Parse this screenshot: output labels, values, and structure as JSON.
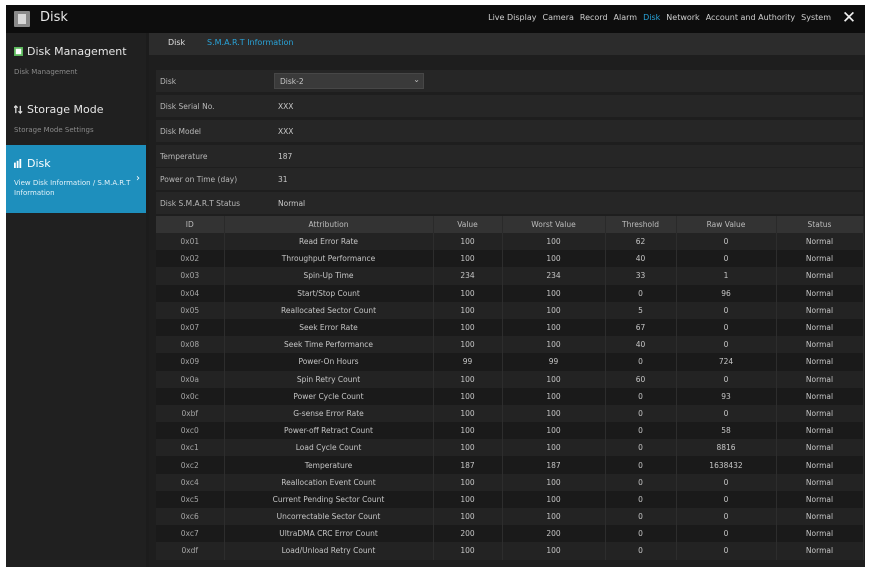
{
  "app": {
    "title": "Disk"
  },
  "nav": {
    "items": [
      {
        "label": "Live Display"
      },
      {
        "label": "Camera"
      },
      {
        "label": "Record"
      },
      {
        "label": "Alarm"
      },
      {
        "label": "Disk",
        "active": true
      },
      {
        "label": "Network"
      },
      {
        "label": "Account and Authority"
      },
      {
        "label": "System"
      }
    ],
    "close_label": "✕"
  },
  "sidebar": {
    "items": [
      {
        "title": "Disk Management",
        "sub": "Disk Management",
        "icon": "disk-management-icon"
      },
      {
        "title": "Storage Mode",
        "sub": "Storage Mode Settings",
        "icon": "storage-mode-icon"
      },
      {
        "title": "Disk",
        "sub": "View Disk Information / S.M.A.R.T Information",
        "icon": "disk-info-icon",
        "active": true
      }
    ]
  },
  "tabs": [
    {
      "label": "Disk"
    },
    {
      "label": "S.M.A.R.T Information",
      "active": true
    }
  ],
  "info": {
    "disk_label": "Disk",
    "disk_value": "Disk-2",
    "serial_label": "Disk Serial No.",
    "serial_value": "XXX",
    "model_label": "Disk Model",
    "model_value": "XXX",
    "temp_label": "Temperature",
    "temp_value": "187",
    "power_label": "Power on Time (day)",
    "power_value": "31",
    "status_label": "Disk S.M.A.R.T Status",
    "status_value": "Normal"
  },
  "table": {
    "headers": [
      "ID",
      "Attribution",
      "Value",
      "Worst Value",
      "Threshold",
      "Raw Value",
      "Status"
    ],
    "rows": [
      [
        "0x01",
        "Read Error Rate",
        "100",
        "100",
        "62",
        "0",
        "Normal"
      ],
      [
        "0x02",
        "Throughput Performance",
        "100",
        "100",
        "40",
        "0",
        "Normal"
      ],
      [
        "0x03",
        "Spin-Up Time",
        "234",
        "234",
        "33",
        "1",
        "Normal"
      ],
      [
        "0x04",
        "Start/Stop Count",
        "100",
        "100",
        "0",
        "96",
        "Normal"
      ],
      [
        "0x05",
        "Reallocated Sector Count",
        "100",
        "100",
        "5",
        "0",
        "Normal"
      ],
      [
        "0x07",
        "Seek Error Rate",
        "100",
        "100",
        "67",
        "0",
        "Normal"
      ],
      [
        "0x08",
        "Seek Time Performance",
        "100",
        "100",
        "40",
        "0",
        "Normal"
      ],
      [
        "0x09",
        "Power-On Hours",
        "99",
        "99",
        "0",
        "724",
        "Normal"
      ],
      [
        "0x0a",
        "Spin Retry Count",
        "100",
        "100",
        "60",
        "0",
        "Normal"
      ],
      [
        "0x0c",
        "Power Cycle Count",
        "100",
        "100",
        "0",
        "93",
        "Normal"
      ],
      [
        "0xbf",
        "G-sense Error Rate",
        "100",
        "100",
        "0",
        "0",
        "Normal"
      ],
      [
        "0xc0",
        "Power-off Retract Count",
        "100",
        "100",
        "0",
        "58",
        "Normal"
      ],
      [
        "0xc1",
        "Load Cycle Count",
        "100",
        "100",
        "0",
        "8816",
        "Normal"
      ],
      [
        "0xc2",
        "Temperature",
        "187",
        "187",
        "0",
        "1638432",
        "Normal"
      ],
      [
        "0xc4",
        "Reallocation Event Count",
        "100",
        "100",
        "0",
        "0",
        "Normal"
      ],
      [
        "0xc5",
        "Current Pending Sector Count",
        "100",
        "100",
        "0",
        "0",
        "Normal"
      ],
      [
        "0xc6",
        "Uncorrectable Sector Count",
        "100",
        "100",
        "0",
        "0",
        "Normal"
      ],
      [
        "0xc7",
        "UltraDMA CRC Error Count",
        "200",
        "200",
        "0",
        "0",
        "Normal"
      ],
      [
        "0xdf",
        "Load/Unload Retry Count",
        "100",
        "100",
        "0",
        "0",
        "Normal"
      ]
    ]
  },
  "colors": {
    "accent": "#1e8fbd",
    "active_text": "#29a3d8",
    "background": "#1c1c1c"
  }
}
